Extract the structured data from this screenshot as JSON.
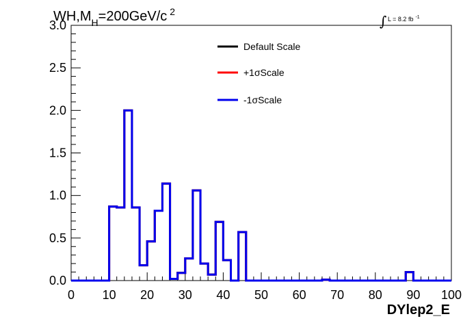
{
  "chart_data": {
    "type": "line",
    "title": {
      "main": "WH,M",
      "sub": "H",
      "rest": "=200GeV/c",
      "sup": "2"
    },
    "lumi": {
      "symbol": "∫",
      "text": "L = 8.2 fb",
      "sup": "-1"
    },
    "xlabel": "DYlep2_E",
    "xlim": [
      0,
      100
    ],
    "ylim": [
      0,
      3.0
    ],
    "x_ticks": [
      "0",
      "10",
      "20",
      "30",
      "40",
      "50",
      "60",
      "70",
      "80",
      "90",
      "100"
    ],
    "y_ticks": [
      "0.0",
      "0.5",
      "1.0",
      "1.5",
      "2.0",
      "2.5",
      "3.0"
    ],
    "bin_width": 2,
    "series": [
      {
        "name": "Default Scale",
        "color": "#000000"
      },
      {
        "name": "+1σScale",
        "color": "#ff0000"
      },
      {
        "name": "-1σScale",
        "color": "#0000ee",
        "values": [
          0,
          0,
          0,
          0,
          0,
          0.87,
          0.86,
          2.0,
          0.86,
          0.18,
          0.46,
          0.82,
          1.14,
          0.02,
          0.09,
          0.26,
          1.06,
          0.2,
          0.07,
          0.69,
          0.24,
          0,
          0.57,
          0,
          0,
          0,
          0,
          0,
          0,
          0,
          0,
          0,
          0,
          0.01,
          0,
          0,
          0,
          0,
          0,
          0,
          0,
          0,
          0,
          0,
          0.1,
          0,
          0,
          0,
          0,
          0
        ]
      }
    ],
    "grid": false,
    "legend_position": "top-center"
  }
}
